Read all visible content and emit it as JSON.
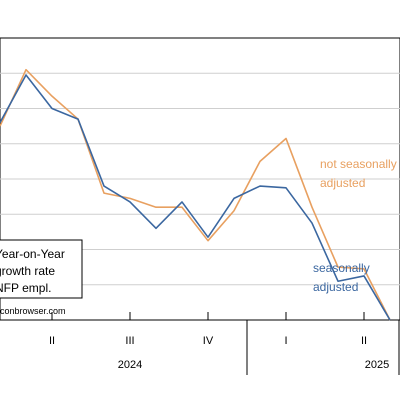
{
  "chart_data": {
    "type": "line",
    "x_ticks": [
      "II",
      "III",
      "IV",
      "I",
      "II"
    ],
    "year_labels": [
      "2024",
      "2025"
    ],
    "ylim": [
      1.0,
      2.6
    ],
    "series": [
      {
        "name": "not seasonally adjusted",
        "color": "#E8A060",
        "values": [
          2.1,
          2.42,
          2.27,
          2.14,
          1.72,
          1.69,
          1.64,
          1.64,
          1.45,
          1.62,
          1.9,
          2.03,
          1.64,
          1.3,
          1.29,
          1.0
        ]
      },
      {
        "name": "seasonally adjusted",
        "color": "#3B67A0",
        "values": [
          2.12,
          2.39,
          2.2,
          2.14,
          1.76,
          1.67,
          1.52,
          1.67,
          1.47,
          1.69,
          1.76,
          1.75,
          1.55,
          1.22,
          1.25,
          1.0
        ]
      }
    ],
    "legend": [
      "Year-on-Year",
      "growth rate",
      "NFP empl."
    ],
    "grid": true
  },
  "annotations": {
    "nsa_line1": "not seasonally",
    "nsa_line2": "adjusted",
    "sa_line1": "seasonally",
    "sa_line2": "adjusted"
  },
  "watermark": "econbrowser.com"
}
